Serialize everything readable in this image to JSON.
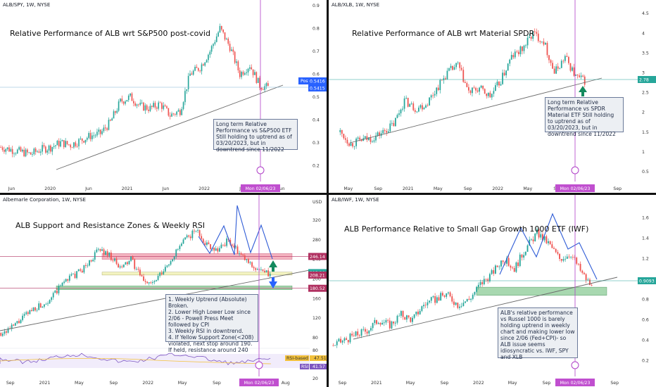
{
  "panels": {
    "p1": {
      "symbol": "ALB/SPY, 1W, NYSE",
      "title": "Relative Performance of ALB wrt S&P500 post-covid",
      "note": "Long term Relative Performance vs  S&P500  ETF Still holding to uptrend as of 03/20/2023, but in downtrend since 11/2022",
      "date_label": "Mon 02/06/23",
      "price_tag_label": "Post",
      "price_tags": [
        "0.5416",
        "0.5415"
      ]
    },
    "p2": {
      "symbol": "ALB/XLB, 1W, NYSE",
      "title": "Relative Performance of ALB wrt Material SPDR",
      "note": "Long term Relative Performance vs SPDR Material ETF Still holding to uptrend as of 03/20/2023, but in downtrend since 11/2022",
      "date_label": "Mon 02/06/23",
      "price_tags": [
        "2.78"
      ]
    },
    "p3": {
      "symbol": "Albemarle Corporation, 1W, NYSE",
      "currency": "USD",
      "title": "ALB Support and Resistance Zones & Weekly RSI",
      "note_lines": [
        "1. Weekly Uptrend (Absolute) Broken.",
        "2. Lower High Lower Low since 2/06 - Powell Press Meet followed by CPI",
        "3. Weekly RSI in downtrend.",
        "4. If Yellow Support Zone(<208) violated, next stop around 190. If held, resistance around 240"
      ],
      "date_label": "Mon 02/06/23",
      "price_tags": [
        "246.14",
        "213.20",
        "208.21",
        "180.52"
      ],
      "rsi_labels": {
        "ma": "RSI-based MA",
        "ma_value": "47.51",
        "rsi": "RSI",
        "rsi_value": "41.57"
      }
    },
    "p4": {
      "symbol": "ALB/IWF, 1W, NYSE",
      "title": "ALB Performance Relative to Small Gap Growth 1000 ETF (IWF)",
      "note": "ALB's relative performance vs Russel 1000 is barely holding uptrend in weekly chart and making lower low since 2/06 (Fed+CPI)- so ALB issue seems idiosyncratic vs. IWF, SPY and XLB",
      "date_label": "Mon 02/06/23",
      "price_tags": [
        "0.9093"
      ]
    }
  },
  "colors": {
    "up": "#26a69a",
    "down": "#ef5350",
    "trend": "#6b6b6b",
    "date_line": "#b040c8",
    "price_line": "#2962ff",
    "resist_zone": "#f4b4c0",
    "support_zone": "#a8d8b0",
    "yellow_zone": "#f3f3c0",
    "wave": "#2f5cd6",
    "arrow_up": "#138a5e",
    "arrow_down": "#2962ff"
  },
  "chart_data": [
    {
      "type": "candlestick",
      "title": "Relative Performance of ALB wrt S&P500 post-covid",
      "x_ticks": [
        "Jun",
        "2020",
        "Jun",
        "2021",
        "Jun",
        "2022",
        "Jun",
        "Jun"
      ],
      "y_ticks": [
        0.9,
        0.8,
        0.7,
        0.6,
        0.5,
        0.4,
        0.3,
        0.2
      ],
      "ylim": [
        0.13,
        0.9
      ],
      "approx_close": [
        0.28,
        0.27,
        0.26,
        0.25,
        0.27,
        0.28,
        0.3,
        0.29,
        0.31,
        0.33,
        0.34,
        0.39,
        0.48,
        0.5,
        0.46,
        0.45,
        0.47,
        0.42,
        0.44,
        0.6,
        0.63,
        0.7,
        0.8,
        0.72,
        0.6,
        0.64,
        0.55,
        0.54
      ]
    },
    {
      "type": "candlestick",
      "title": "Relative Performance of ALB wrt Material SPDR",
      "x_ticks": [
        "May",
        "Sep",
        "2021",
        "May",
        "Sep",
        "2022",
        "May",
        "Sep",
        "May",
        "Sep"
      ],
      "y_ticks": [
        4.5,
        4.0,
        3.5,
        3.0,
        2.5,
        2.0,
        1.5,
        1.0,
        0.5
      ],
      "ylim": [
        0.25,
        4.7
      ],
      "approx_close": [
        1.5,
        1.2,
        1.3,
        1.35,
        1.5,
        1.7,
        2.3,
        2.1,
        2.2,
        2.6,
        3.0,
        3.2,
        2.5,
        2.6,
        2.4,
        2.8,
        3.4,
        3.6,
        4.0,
        3.8,
        3.0,
        3.4,
        2.9,
        2.78
      ]
    },
    {
      "type": "candlestick",
      "title": "ALB Support and Resistance Zones & Weekly RSI",
      "x_ticks": [
        "Sep",
        "2021",
        "May",
        "Sep",
        "2022",
        "May",
        "Sep",
        "May",
        "Aug"
      ],
      "y_ticks": [
        320,
        280,
        240,
        200,
        160,
        120,
        80
      ],
      "ylim": [
        70,
        340
      ],
      "zones": [
        [
          240,
          252
        ],
        [
          208,
          214
        ],
        [
          178,
          186
        ]
      ],
      "approx_close": [
        90,
        100,
        120,
        140,
        150,
        170,
        200,
        210,
        230,
        260,
        250,
        220,
        240,
        200,
        190,
        215,
        250,
        280,
        300,
        270,
        260,
        280,
        250,
        230,
        215,
        208
      ],
      "rsi_ticks": [
        80,
        20
      ]
    },
    {
      "type": "candlestick",
      "title": "ALB Performance Relative to Small Gap Growth 1000 ETF (IWF)",
      "x_ticks": [
        "Sep",
        "2021",
        "May",
        "Sep",
        "2022",
        "May",
        "Sep",
        "May",
        "Sep"
      ],
      "y_ticks": [
        1.6,
        1.4,
        1.2,
        1.0,
        0.8,
        0.6,
        0.4,
        0.2
      ],
      "ylim": [
        0.1,
        1.7
      ],
      "approx_close": [
        0.35,
        0.4,
        0.45,
        0.5,
        0.6,
        0.55,
        0.65,
        0.6,
        0.75,
        0.8,
        0.85,
        0.75,
        0.8,
        0.95,
        1.05,
        1.2,
        1.1,
        1.3,
        1.45,
        1.35,
        1.2,
        1.25,
        1.05,
        0.9
      ]
    }
  ]
}
